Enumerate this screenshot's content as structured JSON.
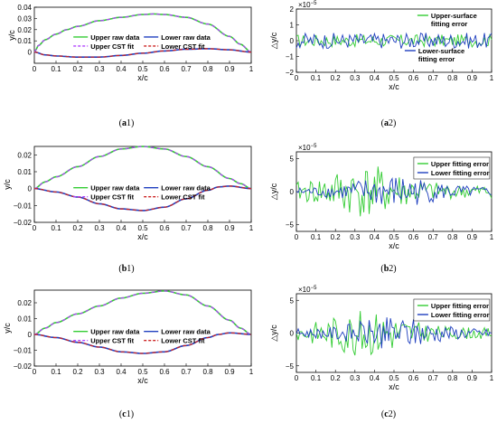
{
  "colors": {
    "upper_raw": "#33cc33",
    "lower_raw": "#1f3fbf",
    "upper_cst": "#b040ff",
    "lower_cst": "#cc2222",
    "upper_err": "#33cc33",
    "lower_err": "#1f3fbf"
  },
  "chart_data": [
    {
      "id": "a1",
      "type": "line",
      "caption_letter": "a",
      "caption_num": "1",
      "xlabel": "x/c",
      "ylabel": "y/c",
      "xlim": [
        0,
        1
      ],
      "ylim": [
        -0.01,
        0.04
      ],
      "xticks": [
        "0",
        "0.1",
        "0.2",
        "0.3",
        "0.4",
        "0.5",
        "0.6",
        "0.7",
        "0.8",
        "0.9",
        "1"
      ],
      "yticks": [
        "0",
        "0.01",
        "0.02",
        "0.03",
        "0.04"
      ],
      "legend": [
        "Upper raw data",
        "Lower raw data",
        "Upper CST fit",
        "Lower CST fit"
      ],
      "series": [
        {
          "name": "Upper raw data",
          "x": [
            0,
            0.02,
            0.05,
            0.1,
            0.15,
            0.2,
            0.3,
            0.4,
            0.5,
            0.55,
            0.6,
            0.7,
            0.8,
            0.9,
            0.95,
            1
          ],
          "y": [
            0,
            0.006,
            0.011,
            0.016,
            0.02,
            0.023,
            0.028,
            0.031,
            0.0335,
            0.034,
            0.0335,
            0.031,
            0.025,
            0.014,
            0.007,
            0
          ]
        },
        {
          "name": "Lower raw data",
          "x": [
            0,
            0.05,
            0.1,
            0.2,
            0.3,
            0.4,
            0.5,
            0.6,
            0.7,
            0.8,
            0.9,
            1
          ],
          "y": [
            0,
            -0.0025,
            -0.0035,
            -0.0045,
            -0.0045,
            -0.003,
            -0.001,
            0.001,
            0.0025,
            0.003,
            0.002,
            0
          ]
        }
      ]
    },
    {
      "id": "a2",
      "type": "line",
      "caption_letter": "a",
      "caption_num": "2",
      "xlabel": "x/c",
      "ylabel": "△y/c",
      "exponent": "×10",
      "exponent_power": "−5",
      "xlim": [
        0,
        1
      ],
      "ylim": [
        -2,
        2
      ],
      "xticks": [
        "0",
        "0.1",
        "0.2",
        "0.3",
        "0.4",
        "0.5",
        "0.6",
        "0.7",
        "0.8",
        "0.9",
        "1"
      ],
      "yticks": [
        "−2",
        "−1",
        "0",
        "1",
        "2"
      ],
      "legend_upper": [
        "Upper-surface",
        "fitting error"
      ],
      "legend_lower": [
        "Lower-surface",
        "fitting error"
      ],
      "series": [
        {
          "name": "Upper-surface fitting error",
          "amplitude": 0.4
        },
        {
          "name": "Lower-surface fitting error",
          "amplitude": 0.5
        }
      ]
    },
    {
      "id": "b1",
      "type": "line",
      "caption_letter": "b",
      "caption_num": "1",
      "xlabel": "x/c",
      "ylabel": "y/c",
      "xlim": [
        0,
        1
      ],
      "ylim": [
        -0.02,
        0.025
      ],
      "xticks": [
        "0",
        "0.1",
        "0.2",
        "0.3",
        "0.4",
        "0.5",
        "0.6",
        "0.7",
        "0.8",
        "0.9",
        "1"
      ],
      "yticks": [
        "−0.02",
        "−0.01",
        "0",
        "0.01",
        "0.02"
      ],
      "legend": [
        "Upper raw data",
        "Lower raw data",
        "Upper CST fit",
        "Lower CST fit"
      ],
      "series": [
        {
          "name": "Upper raw data",
          "x": [
            0,
            0.05,
            0.1,
            0.2,
            0.3,
            0.4,
            0.5,
            0.6,
            0.7,
            0.8,
            0.9,
            0.95,
            1
          ],
          "y": [
            0,
            0.004,
            0.007,
            0.013,
            0.019,
            0.0235,
            0.025,
            0.0235,
            0.019,
            0.013,
            0.006,
            0.003,
            0
          ]
        },
        {
          "name": "Lower raw data",
          "x": [
            0,
            0.1,
            0.2,
            0.3,
            0.4,
            0.5,
            0.6,
            0.7,
            0.8,
            0.85,
            0.9,
            1
          ],
          "y": [
            0,
            -0.002,
            -0.005,
            -0.009,
            -0.012,
            -0.013,
            -0.011,
            -0.006,
            -0.001,
            0.001,
            0.0015,
            0
          ]
        }
      ]
    },
    {
      "id": "b2",
      "type": "line",
      "caption_letter": "b",
      "caption_num": "2",
      "xlabel": "x/c",
      "ylabel": "△y/c",
      "exponent": "×10",
      "exponent_power": "−5",
      "xlim": [
        0,
        1
      ],
      "ylim": [
        -6,
        6
      ],
      "xticks": [
        "0",
        "0.1",
        "0.2",
        "0.3",
        "0.4",
        "0.5",
        "0.6",
        "0.7",
        "0.8",
        "0.9",
        "1"
      ],
      "yticks": [
        "−5",
        "0",
        "5"
      ],
      "legend": [
        "Upper fitting error",
        "Lower fitting error"
      ],
      "series": [
        {
          "name": "Upper fitting error",
          "amplitude": 4
        },
        {
          "name": "Lower fitting error",
          "amplitude": 2.5
        }
      ]
    },
    {
      "id": "c1",
      "type": "line",
      "caption_letter": "c",
      "caption_num": "1",
      "xlabel": "x/c",
      "ylabel": "y/c",
      "xlim": [
        0,
        1
      ],
      "ylim": [
        -0.02,
        0.028
      ],
      "xticks": [
        "0",
        "0.1",
        "0.2",
        "0.3",
        "0.4",
        "0.5",
        "0.6",
        "0.7",
        "0.8",
        "0.9",
        "1"
      ],
      "yticks": [
        "−0.02",
        "−0.01",
        "0",
        "0.01",
        "0.02"
      ],
      "legend": [
        "Upper raw data",
        "Lower raw data",
        "Upper CST fit",
        "Lower CST fit"
      ],
      "series": [
        {
          "name": "Upper raw data",
          "x": [
            0,
            0.05,
            0.1,
            0.2,
            0.3,
            0.4,
            0.5,
            0.6,
            0.7,
            0.8,
            0.9,
            0.95,
            1
          ],
          "y": [
            0,
            0.004,
            0.0075,
            0.013,
            0.018,
            0.023,
            0.026,
            0.0275,
            0.025,
            0.018,
            0.009,
            0.004,
            0
          ]
        },
        {
          "name": "Lower raw data",
          "x": [
            0,
            0.1,
            0.2,
            0.3,
            0.4,
            0.5,
            0.6,
            0.7,
            0.8,
            0.85,
            0.9,
            1
          ],
          "y": [
            0,
            -0.002,
            -0.005,
            -0.008,
            -0.011,
            -0.012,
            -0.011,
            -0.007,
            -0.002,
            0,
            0.001,
            0
          ]
        }
      ]
    },
    {
      "id": "c2",
      "type": "line",
      "caption_letter": "c",
      "caption_num": "2",
      "xlabel": "x/c",
      "ylabel": "△y/c",
      "exponent": "×10",
      "exponent_power": "−5",
      "xlim": [
        0,
        1
      ],
      "ylim": [
        -6,
        6
      ],
      "xticks": [
        "0",
        "0.1",
        "0.2",
        "0.3",
        "0.4",
        "0.5",
        "0.6",
        "0.7",
        "0.8",
        "0.9",
        "1"
      ],
      "yticks": [
        "−5",
        "0",
        "5"
      ],
      "legend": [
        "Upper fitting error",
        "Lower fitting error"
      ],
      "series": [
        {
          "name": "Upper fitting error",
          "amplitude": 3.5
        },
        {
          "name": "Lower fitting error",
          "amplitude": 2.5
        }
      ]
    }
  ]
}
